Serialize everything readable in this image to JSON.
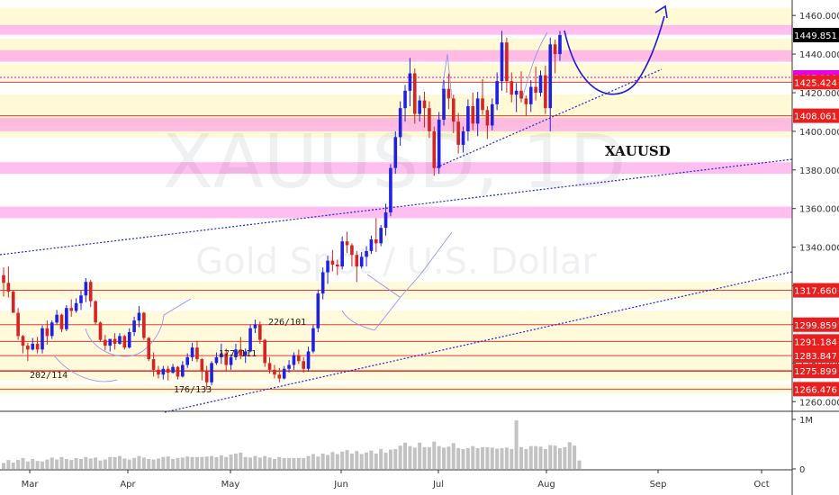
{
  "watermark": {
    "symbol": "XAUUSD, 1D",
    "description": "Gold Spot / U.S. Dollar"
  },
  "annotations": {
    "symbol_label": "XAUUSD",
    "counts": [
      "202/114",
      "176/133",
      "177/111",
      "226/101"
    ]
  },
  "chart_data": [
    {
      "type": "candlestick",
      "symbol": "XAUUSD",
      "timeframe": "1D",
      "ylim": [
        1255,
        1468
      ],
      "y_ticks": [
        1260,
        1280,
        1300,
        1320,
        1340,
        1360,
        1380,
        1400,
        1420,
        1440,
        1460
      ],
      "x_ticks": [
        "Mar",
        "Apr",
        "May",
        "Jun",
        "Jul",
        "Aug",
        "Sep",
        "Oct"
      ],
      "current_price": 1449.851,
      "levels": [
        1427.918,
        1425.424,
        1408.061,
        1317.66,
        1299.859,
        1291.184,
        1283.847,
        1275.899,
        1266.476
      ],
      "level_label_colors": {
        "current": "#000000",
        "dotted": "#e600e6",
        "solid": "#e91e1e"
      },
      "candle_colors": {
        "up": "#1e22e0",
        "down": "#d42424"
      },
      "ohlc": [
        [
          1325.5,
          1329.5,
          1314.5,
          1321.5
        ],
        [
          1321.5,
          1330.0,
          1314.0,
          1317.0
        ],
        [
          1317.0,
          1317.5,
          1306.5,
          1306.0
        ],
        [
          1306.0,
          1308.5,
          1292.0,
          1294.0
        ],
        [
          1294.0,
          1294.5,
          1285.0,
          1289.0
        ],
        [
          1289.0,
          1290.5,
          1281.0,
          1287.0
        ],
        [
          1287.0,
          1293.0,
          1286.5,
          1290.0
        ],
        [
          1290.0,
          1293.5,
          1285.0,
          1287.0
        ],
        [
          1287.0,
          1299.5,
          1285.0,
          1298.0
        ],
        [
          1298.0,
          1302.0,
          1289.5,
          1294.0
        ],
        [
          1294.0,
          1302.0,
          1292.5,
          1301.0
        ],
        [
          1301.0,
          1307.5,
          1300.0,
          1305.0
        ],
        [
          1305.0,
          1305.5,
          1296.0,
          1297.5
        ],
        [
          1297.5,
          1310.0,
          1296.5,
          1308.5
        ],
        [
          1308.5,
          1313.0,
          1304.0,
          1307.0
        ],
        [
          1307.0,
          1313.5,
          1306.0,
          1311.0
        ],
        [
          1311.0,
          1317.5,
          1307.5,
          1315.0
        ],
        [
          1315.0,
          1324.0,
          1311.5,
          1322.0
        ],
        [
          1322.0,
          1323.0,
          1309.0,
          1312.0
        ],
        [
          1312.0,
          1312.5,
          1300.0,
          1301.0
        ],
        [
          1301.0,
          1301.5,
          1291.0,
          1292.0
        ],
        [
          1292.0,
          1294.5,
          1286.5,
          1289.0
        ],
        [
          1289.0,
          1291.0,
          1286.0,
          1292.5
        ],
        [
          1292.5,
          1295.5,
          1287.0,
          1290.0
        ],
        [
          1290.0,
          1295.5,
          1289.5,
          1294.0
        ],
        [
          1294.0,
          1294.5,
          1287.0,
          1288.0
        ],
        [
          1288.0,
          1298.0,
          1287.5,
          1296.0
        ],
        [
          1296.0,
          1304.0,
          1294.0,
          1302.0
        ],
        [
          1302.0,
          1309.5,
          1298.5,
          1306.0
        ],
        [
          1306.0,
          1306.5,
          1292.0,
          1293.0
        ],
        [
          1293.0,
          1293.5,
          1281.0,
          1282.0
        ],
        [
          1282.0,
          1285.5,
          1273.0,
          1276.5
        ],
        [
          1276.5,
          1278.5,
          1272.0,
          1274.0
        ],
        [
          1274.0,
          1278.5,
          1271.5,
          1277.0
        ],
        [
          1277.0,
          1278.5,
          1271.0,
          1275.0
        ],
        [
          1275.0,
          1279.5,
          1274.5,
          1278.0
        ],
        [
          1278.0,
          1278.5,
          1271.5,
          1273.0
        ],
        [
          1273.0,
          1281.0,
          1272.5,
          1279.0
        ],
        [
          1279.0,
          1285.0,
          1277.5,
          1283.0
        ],
        [
          1283.0,
          1290.5,
          1281.0,
          1288.0
        ],
        [
          1288.0,
          1291.5,
          1280.5,
          1282.0
        ],
        [
          1282.0,
          1282.5,
          1271.0,
          1276.0
        ],
        [
          1276.0,
          1278.5,
          1266.5,
          1270.0
        ],
        [
          1270.0,
          1281.0,
          1268.5,
          1280.0
        ],
        [
          1280.0,
          1285.5,
          1279.0,
          1283.0
        ],
        [
          1283.0,
          1290.0,
          1279.5,
          1285.0
        ],
        [
          1285.0,
          1287.5,
          1276.0,
          1279.0
        ],
        [
          1279.0,
          1284.5,
          1276.5,
          1283.0
        ],
        [
          1283.0,
          1290.0,
          1281.5,
          1287.0
        ],
        [
          1287.0,
          1293.5,
          1282.0,
          1284.0
        ],
        [
          1284.0,
          1287.5,
          1280.0,
          1286.0
        ],
        [
          1286.0,
          1300.0,
          1285.5,
          1298.0
        ],
        [
          1298.0,
          1302.5,
          1295.5,
          1300.0
        ],
        [
          1300.0,
          1301.5,
          1290.0,
          1292.0
        ],
        [
          1292.0,
          1292.5,
          1278.0,
          1280.0
        ],
        [
          1280.0,
          1283.0,
          1274.5,
          1276.5
        ],
        [
          1276.5,
          1279.0,
          1272.0,
          1274.0
        ],
        [
          1274.0,
          1277.5,
          1270.0,
          1272.0
        ],
        [
          1272.0,
          1278.5,
          1271.5,
          1277.0
        ],
        [
          1277.0,
          1281.5,
          1275.0,
          1279.0
        ],
        [
          1279.0,
          1285.5,
          1276.5,
          1284.0
        ],
        [
          1284.0,
          1287.0,
          1279.5,
          1281.0
        ],
        [
          1281.0,
          1283.0,
          1275.0,
          1277.0
        ],
        [
          1277.0,
          1288.5,
          1275.5,
          1286.0
        ],
        [
          1286.0,
          1300.0,
          1285.0,
          1298.0
        ],
        [
          1298.0,
          1318.0,
          1296.0,
          1316.0
        ],
        [
          1316.0,
          1329.5,
          1313.0,
          1327.0
        ],
        [
          1327.0,
          1335.5,
          1321.0,
          1333.0
        ],
        [
          1333.0,
          1338.5,
          1327.5,
          1331.0
        ],
        [
          1331.0,
          1333.5,
          1325.5,
          1330.0
        ],
        [
          1330.0,
          1345.5,
          1328.5,
          1343.0
        ],
        [
          1343.0,
          1348.0,
          1337.0,
          1341.0
        ],
        [
          1341.0,
          1342.0,
          1330.0,
          1336.0
        ],
        [
          1336.0,
          1338.0,
          1322.0,
          1330.0
        ],
        [
          1330.0,
          1337.5,
          1329.0,
          1335.0
        ],
        [
          1335.0,
          1340.5,
          1330.0,
          1338.0
        ],
        [
          1338.0,
          1346.0,
          1336.5,
          1344.0
        ],
        [
          1344.0,
          1355.0,
          1337.5,
          1342.0
        ],
        [
          1342.0,
          1351.5,
          1340.5,
          1350.0
        ],
        [
          1350.0,
          1362.5,
          1346.0,
          1358.0
        ],
        [
          1358.0,
          1383.0,
          1356.0,
          1381.0
        ],
        [
          1381.0,
          1400.0,
          1378.0,
          1397.0
        ],
        [
          1397.0,
          1415.5,
          1392.5,
          1412.0
        ],
        [
          1412.0,
          1424.0,
          1405.0,
          1421.0
        ],
        [
          1421.0,
          1438.0,
          1413.0,
          1430.0
        ],
        [
          1430.0,
          1432.5,
          1404.0,
          1409.0
        ],
        [
          1409.0,
          1418.5,
          1405.0,
          1416.0
        ],
        [
          1416.0,
          1420.5,
          1402.0,
          1412.0
        ],
        [
          1412.0,
          1415.5,
          1396.5,
          1400.0
        ],
        [
          1400.0,
          1402.5,
          1377.0,
          1381.0
        ],
        [
          1381.0,
          1410.0,
          1378.0,
          1406.0
        ],
        [
          1406.0,
          1426.5,
          1403.0,
          1422.0
        ],
        [
          1422.0,
          1430.0,
          1411.5,
          1417.0
        ],
        [
          1417.0,
          1419.0,
          1399.0,
          1405.0
        ],
        [
          1405.0,
          1409.5,
          1388.5,
          1393.0
        ],
        [
          1393.0,
          1402.5,
          1389.0,
          1400.0
        ],
        [
          1400.0,
          1416.5,
          1395.0,
          1413.0
        ],
        [
          1413.0,
          1420.0,
          1400.5,
          1404.0
        ],
        [
          1404.0,
          1420.5,
          1397.5,
          1417.0
        ],
        [
          1417.0,
          1427.0,
          1408.5,
          1411.0
        ],
        [
          1411.0,
          1413.0,
          1396.0,
          1403.0
        ],
        [
          1403.0,
          1417.0,
          1400.5,
          1414.0
        ],
        [
          1414.0,
          1430.5,
          1411.0,
          1426.0
        ],
        [
          1426.0,
          1452.0,
          1421.0,
          1446.0
        ],
        [
          1446.0,
          1448.5,
          1420.0,
          1426.0
        ],
        [
          1426.0,
          1430.5,
          1415.0,
          1419.0
        ],
        [
          1419.0,
          1425.0,
          1410.0,
          1421.0
        ],
        [
          1421.0,
          1431.0,
          1415.0,
          1417.0
        ],
        [
          1417.0,
          1418.5,
          1408.0,
          1414.0
        ],
        [
          1414.0,
          1426.5,
          1410.0,
          1423.0
        ],
        [
          1423.0,
          1433.5,
          1416.0,
          1420.0
        ],
        [
          1420.0,
          1431.5,
          1418.0,
          1429.0
        ],
        [
          1429.0,
          1434.0,
          1409.0,
          1412.0
        ],
        [
          1412.0,
          1448.5,
          1400.0,
          1445.0
        ],
        [
          1445.0,
          1447.5,
          1430.0,
          1440.0
        ],
        [
          1440.0,
          1452.0,
          1436.5,
          1449.851
        ]
      ],
      "volume": {
        "y_ticks": [
          "1M",
          "0"
        ],
        "values": [
          0.12,
          0.18,
          0.13,
          0.18,
          0.22,
          0.15,
          0.2,
          0.16,
          0.15,
          0.19,
          0.23,
          0.19,
          0.24,
          0.2,
          0.18,
          0.22,
          0.2,
          0.24,
          0.21,
          0.23,
          0.17,
          0.19,
          0.24,
          0.24,
          0.26,
          0.21,
          0.19,
          0.22,
          0.26,
          0.23,
          0.2,
          0.19,
          0.21,
          0.24,
          0.25,
          0.2,
          0.22,
          0.23,
          0.25,
          0.24,
          0.24,
          0.24,
          0.25,
          0.26,
          0.24,
          0.27,
          0.24,
          0.29,
          0.31,
          0.33,
          0.24,
          0.23,
          0.26,
          0.23,
          0.26,
          0.23,
          0.2,
          0.24,
          0.22,
          0.22,
          0.22,
          0.22,
          0.22,
          0.26,
          0.3,
          0.25,
          0.31,
          0.28,
          0.34,
          0.3,
          0.35,
          0.38,
          0.31,
          0.36,
          0.3,
          0.33,
          0.37,
          0.31,
          0.4,
          0.33,
          0.39,
          0.4,
          0.47,
          0.53,
          0.46,
          0.43,
          0.53,
          0.44,
          0.44,
          0.55,
          0.46,
          0.43,
          0.45,
          0.52,
          0.42,
          0.4,
          0.42,
          0.46,
          0.42,
          0.44,
          0.44,
          0.43,
          0.41,
          0.42,
          0.43,
          0.4,
          0.98,
          0.44,
          0.4,
          0.46,
          0.46,
          0.45,
          0.4,
          0.48,
          0.47,
          0.42,
          0.44,
          0.54,
          0.47,
          0.17
        ]
      }
    }
  ]
}
